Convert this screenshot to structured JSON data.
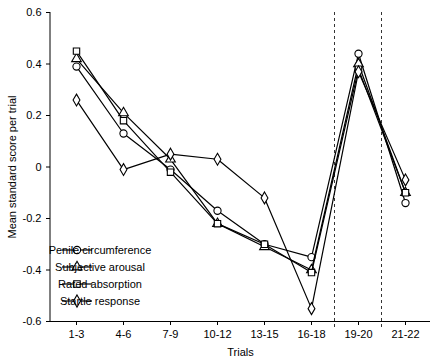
{
  "chart_data": {
    "type": "line",
    "x_label": "Trials",
    "y_label": "Mean standard score per trial",
    "categories": [
      "1-3",
      "4-6",
      "7-9",
      "10-12",
      "13-15",
      "16-18",
      "19-20",
      "21-22"
    ],
    "ylim": [
      -0.6,
      0.6
    ],
    "yticks": [
      -0.6,
      -0.4,
      -0.2,
      0,
      0.2,
      0.4,
      0.6
    ],
    "legend": "lower left",
    "series": [
      {
        "name": "Penile circumference",
        "color": "#000000",
        "marker": "circle",
        "line_style": "solid",
        "values": [
          0.39,
          0.13,
          -0.01,
          -0.17,
          -0.3,
          -0.35,
          0.44,
          -0.14
        ]
      },
      {
        "name": "Subjective arousal",
        "color": "#000000",
        "marker": "triangle",
        "line_style": "solid",
        "values": [
          0.42,
          0.21,
          0.03,
          -0.22,
          -0.31,
          -0.4,
          0.4,
          -0.1
        ]
      },
      {
        "name": "Rated absorption",
        "color": "#000000",
        "marker": "square",
        "line_style": "solid",
        "values": [
          0.45,
          0.18,
          -0.02,
          -0.22,
          -0.3,
          -0.41,
          0.38,
          -0.1
        ]
      },
      {
        "name": "Startle response",
        "color": "#000000",
        "marker": "diamond",
        "line_style": "solid",
        "values": [
          0.26,
          -0.01,
          0.05,
          0.03,
          -0.12,
          -0.55,
          0.37,
          -0.05
        ]
      }
    ]
  }
}
